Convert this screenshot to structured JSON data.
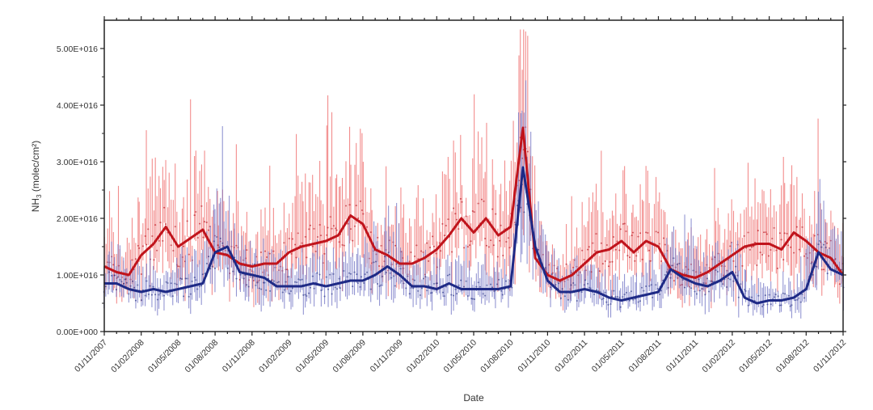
{
  "chart_data": {
    "type": "line",
    "title": "",
    "xlabel": "Date",
    "ylabel_main": "NH",
    "ylabel_sub": "3",
    "ylabel_rest": " (molec/cm²)",
    "ylim": [
      0,
      5.5e+16
    ],
    "y_ticks": [
      0,
      1e+16,
      2e+16,
      3e+16,
      4e+16,
      5e+16
    ],
    "y_tick_labels": [
      "0.00E+000",
      "1.00E+016",
      "2.00E+016",
      "3.00E+016",
      "4.00E+016",
      "5.00E+016"
    ],
    "x_tick_labels": [
      "01/11/2007",
      "01/02/2008",
      "01/05/2008",
      "01/08/2008",
      "01/11/2008",
      "01/02/2009",
      "01/05/2009",
      "01/08/2009",
      "01/11/2009",
      "01/02/2010",
      "01/05/2010",
      "01/08/2010",
      "01/11/2010",
      "01/02/2011",
      "01/05/2011",
      "01/08/2011",
      "01/11/2011",
      "01/02/2012",
      "01/05/2012",
      "01/08/2012",
      "01/11/2012"
    ],
    "x_unit": "months since 01/11/2007",
    "value_scale": 1e+16,
    "series": [
      {
        "name": "red",
        "color": "#c0141c",
        "error_color": "#f07070",
        "values": [
          1.15,
          1.05,
          1.0,
          1.35,
          1.55,
          1.85,
          1.5,
          1.65,
          1.8,
          1.4,
          1.35,
          1.2,
          1.15,
          1.2,
          1.2,
          1.4,
          1.5,
          1.55,
          1.6,
          1.7,
          2.05,
          1.9,
          1.45,
          1.35,
          1.2,
          1.2,
          1.3,
          1.45,
          1.7,
          2.0,
          1.75,
          2.0,
          1.7,
          1.85,
          3.6,
          1.3,
          1.0,
          0.9,
          1.0,
          1.2,
          1.4,
          1.45,
          1.6,
          1.4,
          1.6,
          1.5,
          1.1,
          1.0,
          0.95,
          1.05,
          1.2,
          1.35,
          1.5,
          1.55,
          1.55,
          1.45,
          1.75,
          1.6,
          1.4,
          1.3,
          1.0
        ]
      },
      {
        "name": "blue",
        "color": "#1e2a86",
        "error_color": "#6f72c4",
        "values": [
          0.85,
          0.85,
          0.75,
          0.7,
          0.75,
          0.7,
          0.75,
          0.8,
          0.85,
          1.4,
          1.5,
          1.05,
          1.0,
          0.95,
          0.8,
          0.8,
          0.8,
          0.85,
          0.8,
          0.85,
          0.9,
          0.9,
          1.0,
          1.15,
          1.0,
          0.8,
          0.8,
          0.75,
          0.85,
          0.75,
          0.75,
          0.75,
          0.75,
          0.8,
          2.9,
          1.5,
          0.9,
          0.7,
          0.7,
          0.75,
          0.7,
          0.6,
          0.55,
          0.6,
          0.65,
          0.7,
          1.1,
          0.95,
          0.85,
          0.8,
          0.9,
          1.05,
          0.6,
          0.5,
          0.55,
          0.55,
          0.6,
          0.75,
          1.4,
          1.1,
          1.0
        ]
      }
    ]
  }
}
